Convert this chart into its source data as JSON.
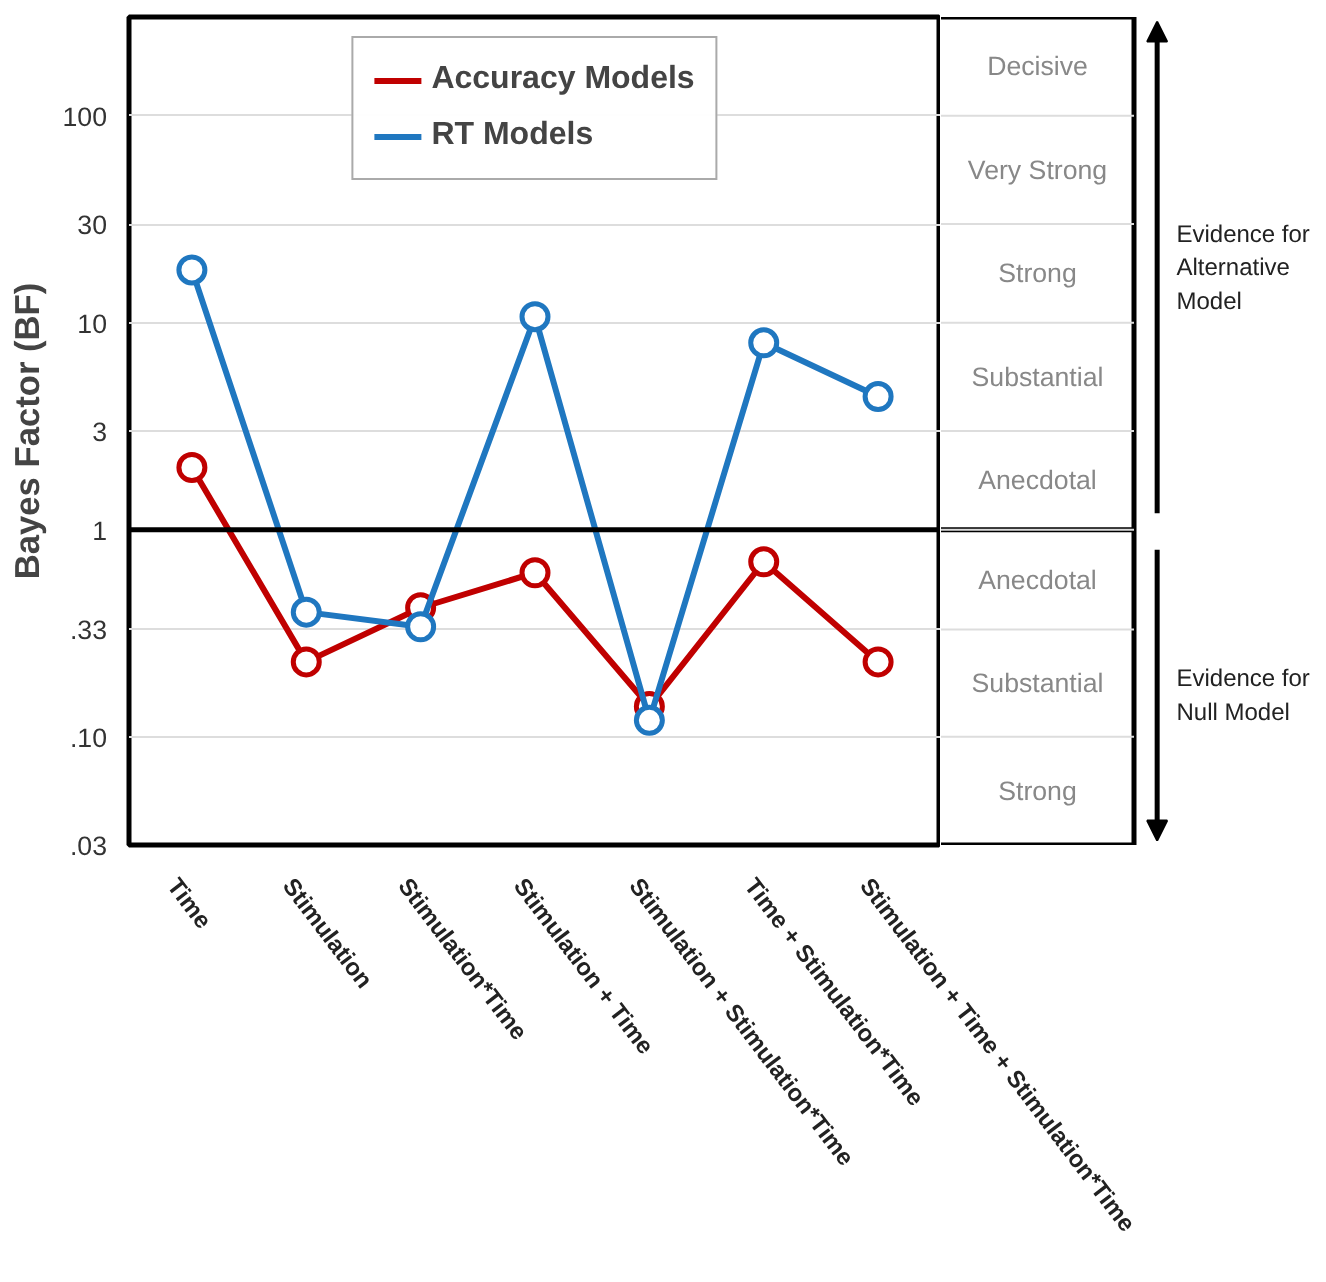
{
  "chart_data": {
    "type": "line",
    "ylabel": "Bayes Factor (BF)",
    "categories": [
      "Time",
      "Stimulation",
      "Stimulation*Time",
      "Stimulation + Time",
      "Stimulation + Stimulation*Time",
      "Time + Stimulation*Time",
      "Stimulation + Time + Stimulation*Time"
    ],
    "series": [
      {
        "name": "Accuracy Models",
        "color": "#c00000",
        "values": [
          2.0,
          0.23,
          0.42,
          0.62,
          0.14,
          0.7,
          0.23
        ]
      },
      {
        "name": "RT Models",
        "color": "#1f77c0",
        "values": [
          18,
          0.4,
          0.34,
          10.7,
          0.12,
          8.0,
          4.4
        ]
      }
    ],
    "log": true,
    "ylim": [
      0.03,
      300
    ],
    "yticks": [
      {
        "value": 0.03,
        "label": ".03"
      },
      {
        "value": 0.1,
        "label": ".10"
      },
      {
        "value": 0.33,
        "label": ".33"
      },
      1,
      3,
      10,
      30,
      100
    ],
    "ref_lines": [
      {
        "axis": "y",
        "value": 1,
        "color": "#000000"
      }
    ],
    "annotations": [
      "Decisive",
      "Very Strong",
      "Strong",
      "Substantial",
      "Anecdotal",
      "Anecdotal",
      "Substantial",
      "Strong",
      "Evidence for\nAlternative\nModel",
      "Evidence for\nNull Model"
    ],
    "grid": "y",
    "legend": "top",
    "marker": "circle",
    "line_style": "solid"
  }
}
